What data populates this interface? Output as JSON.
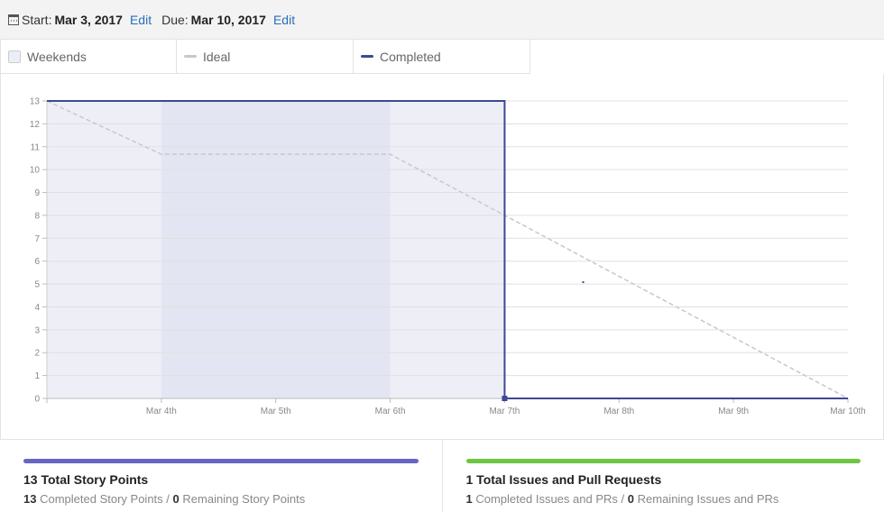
{
  "header": {
    "start_label": "Start:",
    "start_value": "Mar 3, 2017",
    "start_edit": "Edit",
    "due_label": "Due:",
    "due_value": "Mar 10, 2017",
    "due_edit": "Edit"
  },
  "legend": {
    "weekends": "Weekends",
    "ideal": "Ideal",
    "completed": "Completed"
  },
  "colors": {
    "ideal": "#c8c8cc",
    "completed": "#3f4894",
    "completed_fill": "#eeeef7",
    "weekend_fill": "#e4e5f2",
    "grid": "#e0e0e0",
    "story_bar": "#6566c3",
    "issues_bar": "#6cc644"
  },
  "chart_data": {
    "type": "line",
    "title": "",
    "xlabel": "",
    "ylabel": "",
    "x_ticks": [
      "Mar 4th",
      "Mar 5th",
      "Mar 6th",
      "Mar 7th",
      "Mar 8th",
      "Mar 9th",
      "Mar 10th"
    ],
    "y_ticks": [
      0,
      1,
      2,
      3,
      4,
      5,
      6,
      7,
      8,
      9,
      10,
      11,
      12,
      13
    ],
    "xlim": [
      "2017-03-03",
      "2017-03-10"
    ],
    "ylim": [
      0,
      13
    ],
    "weekends": [
      [
        "2017-03-04",
        "2017-03-06"
      ]
    ],
    "grid": true,
    "series": [
      {
        "name": "Ideal",
        "points": [
          {
            "x": "2017-03-03",
            "y": 13
          },
          {
            "x": "2017-03-04",
            "y": 10.67
          },
          {
            "x": "2017-03-06",
            "y": 10.67
          },
          {
            "x": "2017-03-10",
            "y": 0
          }
        ]
      },
      {
        "name": "Completed",
        "points": [
          {
            "x": "2017-03-03",
            "y": 13
          },
          {
            "x": "2017-03-07",
            "y": 13
          },
          {
            "x": "2017-03-07",
            "y": 0
          },
          {
            "x": "2017-03-10",
            "y": 0
          }
        ]
      }
    ]
  },
  "stats": {
    "story": {
      "title": "13 Total Story Points",
      "completed_count": "13",
      "completed_label": "Completed Story Points",
      "sep": "/",
      "remaining_count": "0",
      "remaining_label": "Remaining Story Points"
    },
    "issues": {
      "title": "1 Total Issues and Pull Requests",
      "completed_count": "1",
      "completed_label": "Completed Issues and PRs",
      "sep": "/",
      "remaining_count": "0",
      "remaining_label": "Remaining Issues and PRs"
    }
  }
}
